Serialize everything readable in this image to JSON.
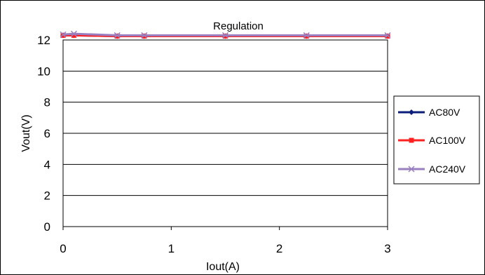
{
  "chart_data": {
    "type": "line",
    "title": "Regulation",
    "xlabel": "Iout(A)",
    "ylabel": "Vout(V)",
    "xlim": [
      0,
      3
    ],
    "ylim": [
      0,
      12
    ],
    "x_ticks": [
      "0",
      "1",
      "2",
      "3"
    ],
    "y_ticks": [
      "0",
      "2",
      "4",
      "6",
      "8",
      "10",
      "12"
    ],
    "grid": "horizontal",
    "legend_position": "right",
    "series": [
      {
        "name": "AC80V",
        "color": "#0b1f7a",
        "marker": "diamond",
        "x": [
          0,
          0.1,
          0.5,
          0.75,
          1.5,
          2.25,
          3
        ],
        "y": [
          12.3,
          12.3,
          12.25,
          12.25,
          12.25,
          12.25,
          12.25
        ]
      },
      {
        "name": "AC100V",
        "color": "#ff2020",
        "marker": "square",
        "x": [
          0,
          0.1,
          0.5,
          0.75,
          1.5,
          2.25,
          3
        ],
        "y": [
          12.3,
          12.3,
          12.25,
          12.25,
          12.25,
          12.25,
          12.25
        ]
      },
      {
        "name": "AC240V",
        "color": "#9a7fc0",
        "marker": "x",
        "x": [
          0,
          0.1,
          0.5,
          0.75,
          1.5,
          2.25,
          3
        ],
        "y": [
          12.35,
          12.4,
          12.3,
          12.3,
          12.3,
          12.3,
          12.3
        ]
      }
    ]
  }
}
